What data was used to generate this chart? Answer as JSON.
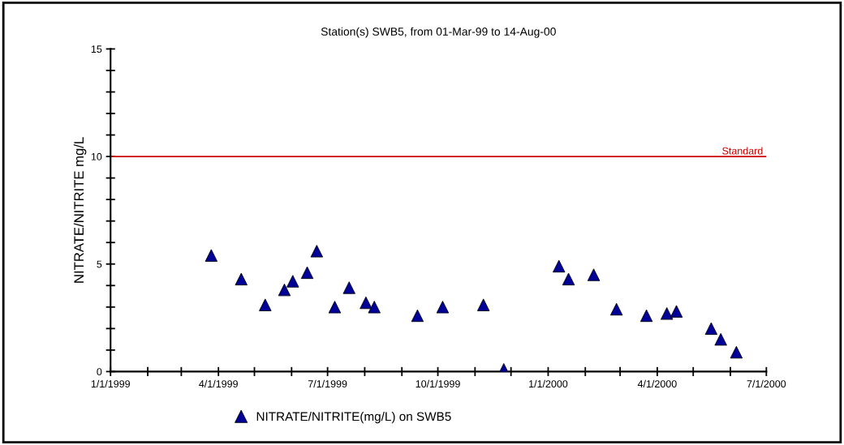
{
  "chart_data": {
    "type": "scatter",
    "title": "Station(s) SWB5, from 01-Mar-99 to 14-Aug-00",
    "ylabel": "NITRATE/NITRITE mg/L",
    "x": [
      "1999-03-26",
      "1999-04-20",
      "1999-05-10",
      "1999-05-26",
      "1999-06-02",
      "1999-06-14",
      "1999-06-22",
      "1999-07-07",
      "1999-07-19",
      "1999-08-02",
      "1999-08-09",
      "1999-09-14",
      "1999-10-05",
      "1999-11-08",
      "1999-11-25",
      "2000-01-10",
      "2000-01-18",
      "2000-02-08",
      "2000-02-27",
      "2000-03-23",
      "2000-04-09",
      "2000-04-17",
      "2000-05-16",
      "2000-05-24",
      "2000-06-06"
    ],
    "series": [
      {
        "name": "NITRATE/NITRITE(mg/L) on SWB5",
        "color": "#000099",
        "values": [
          5.4,
          4.3,
          3.1,
          3.8,
          4.2,
          4.6,
          5.6,
          3.0,
          3.9,
          3.2,
          3.0,
          2.6,
          3.0,
          3.1,
          0.1,
          4.9,
          4.3,
          4.5,
          2.9,
          2.6,
          2.7,
          2.8,
          2.0,
          1.5,
          0.9
        ]
      }
    ],
    "marker": "triangle",
    "xlim": [
      "1999-01-01",
      "2000-07-01"
    ],
    "xticks": [
      {
        "value": "1999-01-01",
        "label": "1/1/1999"
      },
      {
        "value": "1999-02-01",
        "label": null
      },
      {
        "value": "1999-03-01",
        "label": null
      },
      {
        "value": "1999-04-01",
        "label": "4/1/1999"
      },
      {
        "value": "1999-05-01",
        "label": null
      },
      {
        "value": "1999-06-01",
        "label": null
      },
      {
        "value": "1999-07-01",
        "label": "7/1/1999"
      },
      {
        "value": "1999-08-01",
        "label": null
      },
      {
        "value": "1999-09-01",
        "label": null
      },
      {
        "value": "1999-10-01",
        "label": "10/1/1999"
      },
      {
        "value": "1999-11-01",
        "label": null
      },
      {
        "value": "1999-12-01",
        "label": null
      },
      {
        "value": "2000-01-01",
        "label": "1/1/2000"
      },
      {
        "value": "2000-02-01",
        "label": null
      },
      {
        "value": "2000-03-01",
        "label": null
      },
      {
        "value": "2000-04-01",
        "label": "4/1/2000"
      },
      {
        "value": "2000-05-01",
        "label": null
      },
      {
        "value": "2000-06-01",
        "label": null
      },
      {
        "value": "2000-07-01",
        "label": "7/1/2000"
      }
    ],
    "ylim": [
      0,
      15
    ],
    "yticks": [
      0,
      {
        "value": 1,
        "label": null
      },
      {
        "value": 2,
        "label": null
      },
      {
        "value": 3,
        "label": null
      },
      {
        "value": 4,
        "label": null
      },
      5,
      {
        "value": 6,
        "label": null
      },
      {
        "value": 7,
        "label": null
      },
      {
        "value": 8,
        "label": null
      },
      {
        "value": 9,
        "label": null
      },
      10,
      {
        "value": 11,
        "label": null
      },
      {
        "value": 12,
        "label": null
      },
      {
        "value": 13,
        "label": null
      },
      {
        "value": 14,
        "label": null
      },
      15
    ],
    "ref_lines": [
      {
        "axis": "y",
        "value": 10,
        "label": "Standard",
        "color": "#cc0000"
      }
    ],
    "grid": false,
    "legend": "bottom"
  }
}
